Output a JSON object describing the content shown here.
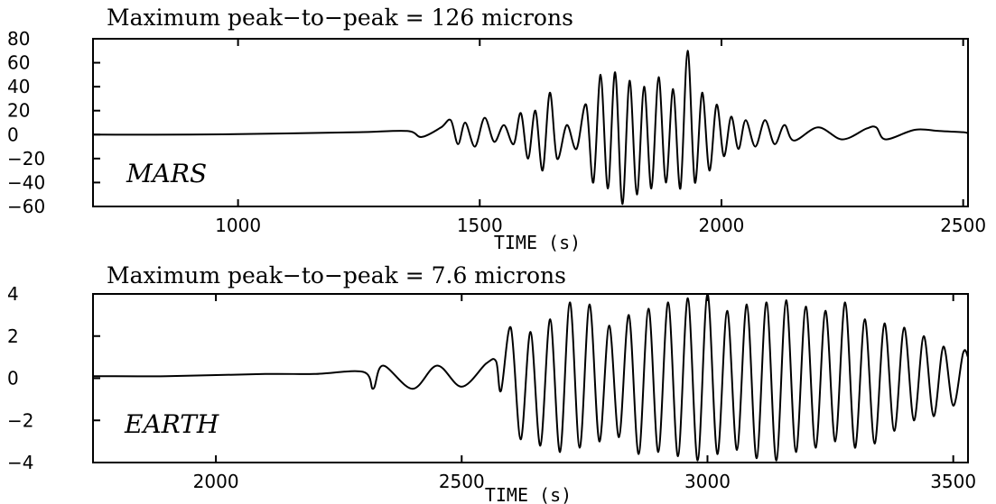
{
  "chart_data": [
    {
      "type": "line",
      "title": "Maximum peak−to−peak = 126 microns",
      "label": "MARS",
      "xlabel": "TIME (s)",
      "ylabel": "",
      "xlim": [
        700,
        2510
      ],
      "ylim": [
        -60,
        80
      ],
      "xticks": [
        1000,
        1500,
        2000,
        2500
      ],
      "yticks": [
        80,
        60,
        40,
        20,
        0,
        -20,
        -40,
        -60
      ],
      "grid": false,
      "series": [
        {
          "x": [
            700,
            900,
            1100,
            1250,
            1350,
            1380,
            1420,
            1440,
            1455,
            1470,
            1490,
            1510,
            1530,
            1550,
            1570,
            1585,
            1600,
            1615,
            1630,
            1645,
            1660,
            1680,
            1700,
            1720,
            1735,
            1750,
            1765,
            1780,
            1795,
            1810,
            1825,
            1840,
            1855,
            1870,
            1885,
            1900,
            1915,
            1930,
            1945,
            1960,
            1975,
            1990,
            2005,
            2020,
            2035,
            2050,
            2070,
            2090,
            2110,
            2130,
            2150,
            2200,
            2250,
            2300,
            2320,
            2340,
            2400,
            2450,
            2500,
            2510
          ],
          "y": [
            0,
            0,
            1,
            2,
            3,
            -2,
            6,
            12,
            -8,
            10,
            -10,
            14,
            -6,
            8,
            -8,
            18,
            -20,
            20,
            -30,
            35,
            -20,
            8,
            -12,
            25,
            -40,
            50,
            -45,
            52,
            -58,
            45,
            -50,
            40,
            -45,
            48,
            -40,
            38,
            -45,
            70,
            -40,
            35,
            -30,
            25,
            -18,
            15,
            -12,
            12,
            -10,
            12,
            -8,
            8,
            -5,
            6,
            -4,
            5,
            6,
            -4,
            4,
            3,
            2,
            1
          ]
        }
      ]
    },
    {
      "type": "line",
      "title": "Maximum peak−to−peak = 7.6 microns",
      "label": "EARTH",
      "xlabel": "TIME (s)",
      "ylabel": "",
      "xlim": [
        1750,
        3530
      ],
      "ylim": [
        -4,
        4
      ],
      "xticks": [
        2000,
        2500,
        3000,
        3500
      ],
      "yticks": [
        4,
        2,
        0,
        -2,
        -4
      ],
      "grid": false,
      "series": [
        {
          "x": [
            1750,
            1900,
            2100,
            2200,
            2300,
            2320,
            2340,
            2400,
            2450,
            2500,
            2550,
            2570,
            2580,
            2600,
            2620,
            2640,
            2660,
            2680,
            2700,
            2720,
            2740,
            2760,
            2780,
            2800,
            2820,
            2840,
            2860,
            2880,
            2900,
            2920,
            2940,
            2960,
            2980,
            3000,
            3020,
            3040,
            3060,
            3080,
            3100,
            3120,
            3140,
            3160,
            3180,
            3200,
            3220,
            3240,
            3260,
            3280,
            3300,
            3320,
            3340,
            3360,
            3380,
            3400,
            3420,
            3440,
            3460,
            3480,
            3500,
            3520,
            3530
          ],
          "y": [
            0.1,
            0.1,
            0.2,
            0.2,
            0.3,
            -0.5,
            0.6,
            -0.5,
            0.6,
            -0.4,
            0.7,
            0.8,
            -0.6,
            2.4,
            -2.9,
            2.2,
            -3.2,
            2.8,
            -3.5,
            3.6,
            -3.3,
            3.5,
            -3.0,
            2.5,
            -2.8,
            3.0,
            -3.6,
            3.3,
            -3.5,
            3.6,
            -3.7,
            3.8,
            -3.9,
            4.0,
            -3.6,
            3.2,
            -3.4,
            3.5,
            -3.8,
            3.6,
            -3.9,
            3.7,
            -3.5,
            3.4,
            -3.3,
            3.2,
            -3.0,
            3.6,
            -3.3,
            2.8,
            -3.1,
            2.6,
            -2.5,
            2.4,
            -2.0,
            2.0,
            -1.8,
            1.5,
            -1.3,
            1.2,
            1.0
          ]
        }
      ]
    }
  ]
}
